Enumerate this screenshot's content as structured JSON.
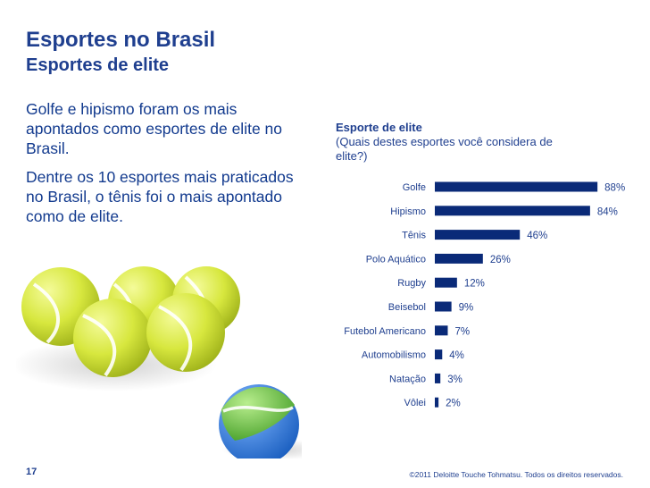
{
  "header": {
    "title": "Esportes no Brasil",
    "subtitle": "Esportes de elite"
  },
  "body": {
    "paragraph1": "Golfe e hipismo foram os mais apontados como esportes de elite no Brasil.",
    "paragraph2": "Dentre os 10 esportes mais praticados no Brasil, o tênis foi o mais apontado como de elite."
  },
  "chart_header": {
    "title": "Esporte de elite",
    "question": "(Quais destes esportes você considera de elite?)"
  },
  "chart_data": {
    "type": "bar",
    "orientation": "horizontal",
    "title": "Esporte de elite",
    "subtitle": "(Quais destes esportes você considera de elite?)",
    "categories": [
      "Golfe",
      "Hipismo",
      "Tênis",
      "Polo Aquático",
      "Rugby",
      "Beisebol",
      "Futebol Americano",
      "Automobilismo",
      "Natação",
      "Vôlei"
    ],
    "values": [
      88,
      84,
      46,
      26,
      12,
      9,
      7,
      4,
      3,
      2
    ],
    "labels": [
      "88%",
      "84%",
      "46%",
      "26%",
      "12%",
      "9%",
      "7%",
      "4%",
      "3%",
      "2%"
    ],
    "unit": "%",
    "xlim": [
      0,
      100
    ],
    "grid": false,
    "color": "#0a2a78"
  },
  "footer": {
    "page_number": "17",
    "copyright": "©2011 Deloitte Touche Tohmatsu. Todos os direitos reservados."
  },
  "colors": {
    "brand_blue": "#1f3f8f",
    "bar": "#0a2a78",
    "ball_yellow": "#d8e84a",
    "ball_blue": "#2f7fd6",
    "ball_green": "#7cc95a"
  },
  "image": {
    "icon": "tennis-balls-illustration"
  }
}
